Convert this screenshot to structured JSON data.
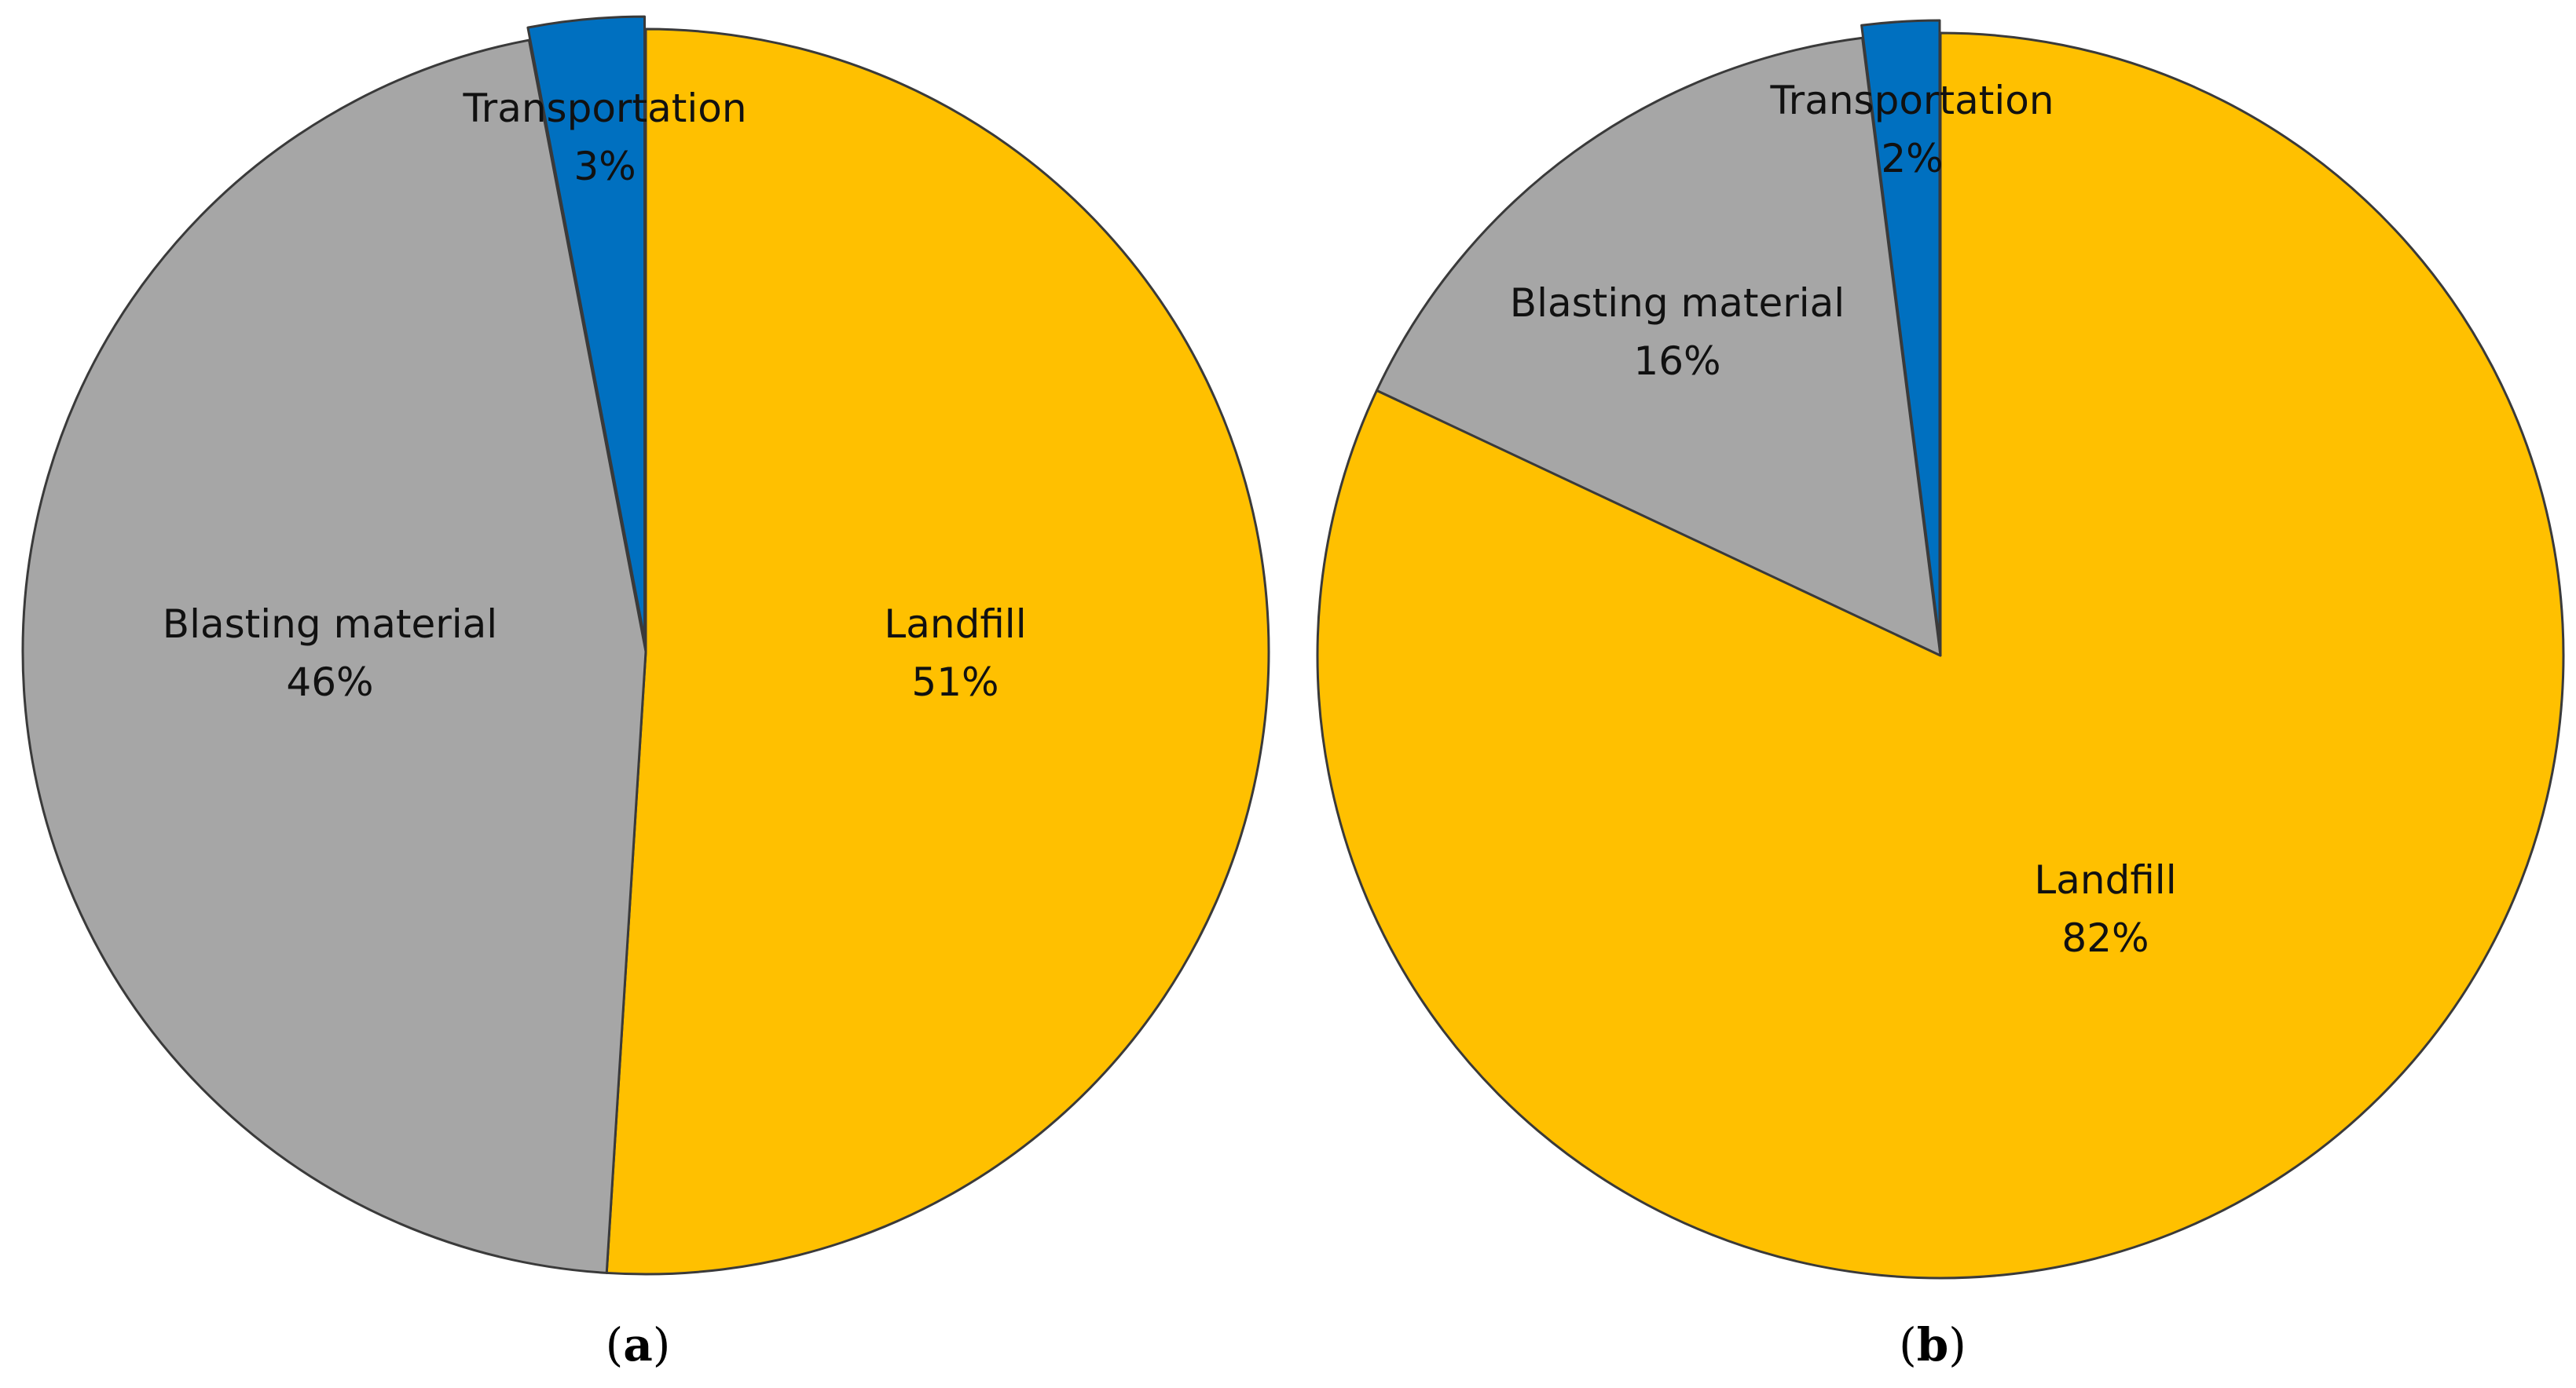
{
  "chart_data": [
    {
      "type": "pie",
      "panel": {
        "open": "(",
        "letter": "a",
        "close": ")"
      },
      "slices": [
        {
          "name": "Landfill",
          "value": 51,
          "value_label": "51%",
          "color": "#FFC000"
        },
        {
          "name": "Blasting material",
          "value": 46,
          "value_label": "46%",
          "color": "#A6A6A6"
        },
        {
          "name": "Transportation",
          "value": 3,
          "value_label": "3%",
          "color": "#0070C0",
          "exploded": true
        }
      ]
    },
    {
      "type": "pie",
      "panel": {
        "open": "(",
        "letter": "b",
        "close": ")"
      },
      "slices": [
        {
          "name": "Landfill",
          "value": 82,
          "value_label": "82%",
          "color": "#FFC000"
        },
        {
          "name": "Blasting material",
          "value": 16,
          "value_label": "16%",
          "color": "#A6A6A6"
        },
        {
          "name": "Transportation",
          "value": 2,
          "value_label": "2%",
          "color": "#0070C0",
          "exploded": true
        }
      ]
    }
  ]
}
